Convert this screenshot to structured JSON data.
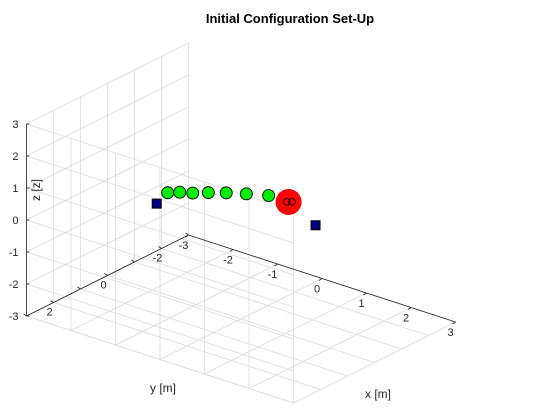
{
  "chart_data": {
    "type": "scatter3d",
    "title": "Initial Configuration Set-Up",
    "xlabel": "x [m]",
    "ylabel": "y [m]",
    "zlabel": "z [z]",
    "xlim": [
      -3,
      3
    ],
    "ylim": [
      -3,
      3
    ],
    "zlim": [
      -3,
      3
    ],
    "ticks": [
      -3,
      -2,
      -1,
      0,
      1,
      2,
      3
    ],
    "xtick_labels": [
      "-3",
      "-2",
      "-1",
      "0",
      "1",
      "2",
      "3"
    ],
    "ytick_labels": [
      "",
      "-2",
      "",
      "0",
      "",
      "2",
      ""
    ],
    "ztick_labels": [
      "-3",
      "-2",
      "-1",
      "0",
      "1",
      "2",
      "3"
    ],
    "grid": true,
    "series": [
      {
        "marker": "circle",
        "color": "#00ee00",
        "points": [
          [
            -0.95,
            1.15,
            1.0
          ],
          [
            -0.8,
            0.95,
            1.0
          ],
          [
            -0.6,
            0.8,
            1.0
          ],
          [
            -0.4,
            0.55,
            1.0
          ],
          [
            -0.15,
            0.3,
            1.0
          ],
          [
            0.15,
            0.05,
            1.0
          ],
          [
            0.5,
            -0.2,
            1.0
          ]
        ]
      },
      {
        "marker": "square",
        "color": "#000080",
        "points": [
          [
            -1.5,
            0.65,
            0.2
          ],
          [
            1.25,
            -0.7,
            0.2
          ]
        ]
      },
      {
        "marker": "big-circle",
        "color": "#ff0000",
        "points": [
          [
            0.25,
            -1.35,
            0.2
          ]
        ]
      },
      {
        "marker": "small-open-circle",
        "color": "#000000",
        "points": [
          [
            0.24,
            -1.3,
            0.22
          ],
          [
            0.31,
            -1.38,
            0.22
          ]
        ]
      }
    ]
  }
}
